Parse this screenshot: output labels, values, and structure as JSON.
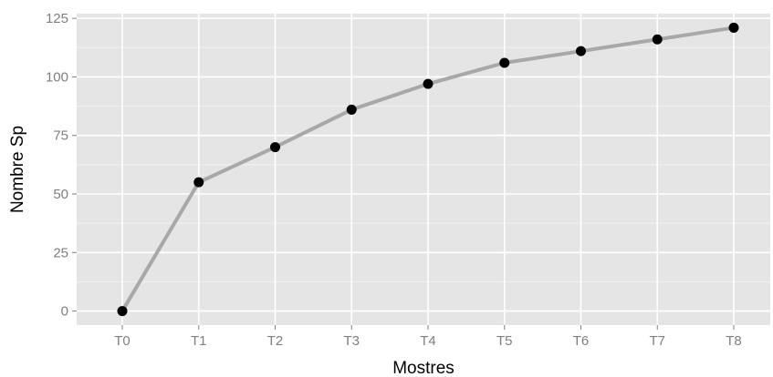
{
  "chart_data": {
    "type": "line",
    "categories": [
      "T0",
      "T1",
      "T2",
      "T3",
      "T4",
      "T5",
      "T6",
      "T7",
      "T8"
    ],
    "series": [
      {
        "values": [
          0,
          55,
          70,
          86,
          97,
          106,
          111,
          116,
          121
        ]
      }
    ],
    "xlabel": "Mostres",
    "ylabel": "Nombre Sp",
    "ylim": [
      -6,
      127
    ],
    "yticks": [
      0,
      25,
      50,
      75,
      100,
      125
    ],
    "grid": true,
    "legend": "none",
    "colors": {
      "panel_background": "#e5e5e5",
      "grid_major": "#ffffff",
      "grid_minor": "#f2f2f2",
      "line": "#a8a8a8",
      "point": "#000000",
      "tick_label": "#7f7f7f"
    }
  }
}
